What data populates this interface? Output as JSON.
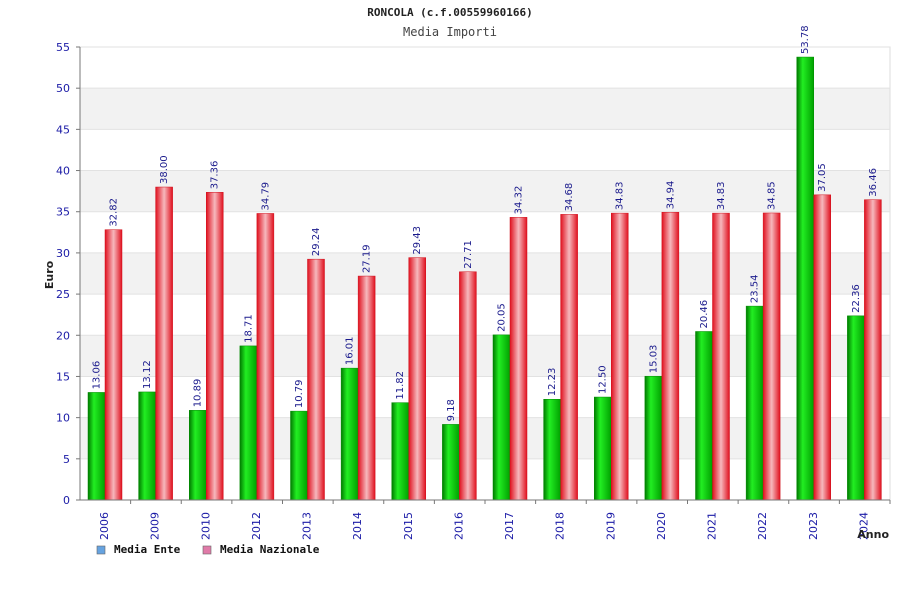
{
  "chart_data": {
    "type": "bar",
    "title": "RONCOLA (c.f.00559960166)",
    "subtitle": "Media Importi",
    "ylabel": "Euro",
    "xlabel": "Anno",
    "ylim": [
      0,
      55
    ],
    "yticks": [
      "0",
      "5",
      "10",
      "15",
      "20",
      "25",
      "30",
      "35",
      "40",
      "45",
      "50",
      "55"
    ],
    "categories": [
      "2006",
      "2009",
      "2010",
      "2012",
      "2013",
      "2014",
      "2015",
      "2016",
      "2017",
      "2018",
      "2019",
      "2020",
      "2021",
      "2022",
      "2023",
      "2024"
    ],
    "series": [
      {
        "name": "Media Ente",
        "values": [
          13.06,
          13.12,
          10.89,
          18.71,
          10.79,
          16.01,
          11.82,
          9.18,
          20.05,
          12.23,
          12.5,
          15.03,
          20.46,
          23.54,
          53.78,
          22.36
        ],
        "labels": [
          "13.06",
          "13.12",
          "10.89",
          "18.71",
          "10.79",
          "16.01",
          "11.82",
          "9.18",
          "20.05",
          "12.23",
          "12.50",
          "15.03",
          "20.46",
          "23.54",
          "53.78",
          "22.36"
        ],
        "color": "#00c000",
        "legend_color": "#66a3e0"
      },
      {
        "name": "Media Nazionale",
        "values": [
          32.82,
          38.0,
          37.36,
          34.79,
          29.24,
          27.19,
          29.43,
          27.71,
          34.32,
          34.68,
          34.83,
          34.94,
          34.83,
          34.85,
          37.05,
          36.46
        ],
        "labels": [
          "32.82",
          "38.00",
          "37.36",
          "34.79",
          "29.24",
          "27.19",
          "29.43",
          "27.71",
          "34.32",
          "34.68",
          "34.83",
          "34.94",
          "34.83",
          "34.85",
          "37.05",
          "36.46"
        ],
        "color": "#ee1c2c",
        "legend_color": "#e07aa8"
      }
    ],
    "grid": true,
    "legend_position": "bottom-left"
  }
}
